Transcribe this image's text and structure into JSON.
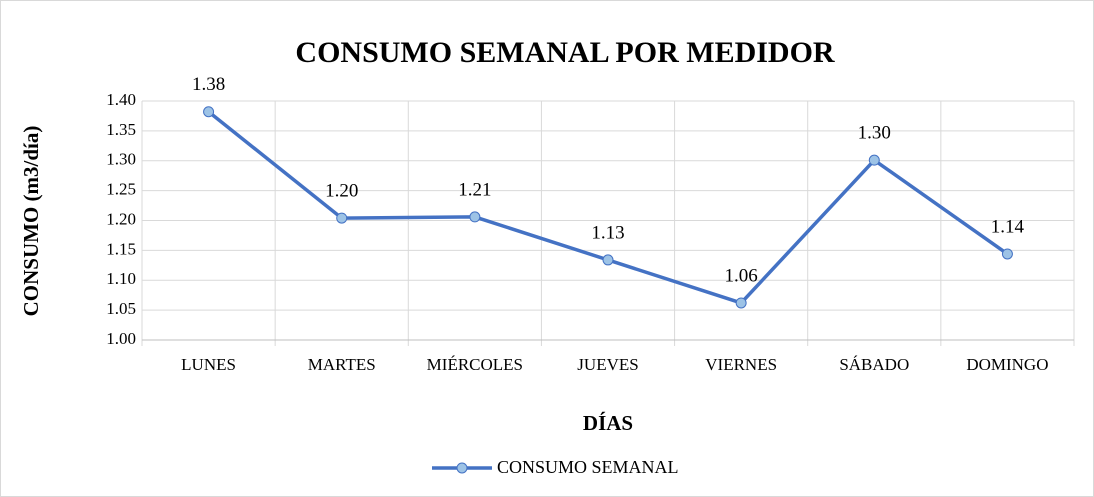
{
  "chart_data": {
    "type": "line",
    "title": "CONSUMO SEMANAL POR MEDIDOR",
    "x_label": "DÍAS",
    "y_label": "CONSUMO (m3/día)",
    "categories": [
      "LUNES",
      "MARTES",
      "MIÉRCOLES",
      "JUEVES",
      "VIERNES",
      "SÁBADO",
      "DOMINGO"
    ],
    "series": [
      {
        "name": "CONSUMO SEMANAL",
        "color": "#4472c4",
        "values": [
          1.382,
          1.204,
          1.206,
          1.134,
          1.062,
          1.301,
          1.144
        ],
        "value_labels": [
          "1.38",
          "1.20",
          "1.21",
          "1.13",
          "1.06",
          "1.30",
          "1.14"
        ]
      }
    ],
    "ylim": [
      1.0,
      1.4
    ],
    "yticks": [
      {
        "value": 1.0,
        "label": "1.00"
      },
      {
        "value": 1.05,
        "label": "1.05"
      },
      {
        "value": 1.1,
        "label": "1.10"
      },
      {
        "value": 1.15,
        "label": "1.15"
      },
      {
        "value": 1.2,
        "label": "1.20"
      },
      {
        "value": 1.25,
        "label": "1.25"
      },
      {
        "value": 1.3,
        "label": "1.30"
      },
      {
        "value": 1.35,
        "label": "1.35"
      },
      {
        "value": 1.4,
        "label": "1.40"
      }
    ],
    "grid": true,
    "legend": "bottom"
  }
}
